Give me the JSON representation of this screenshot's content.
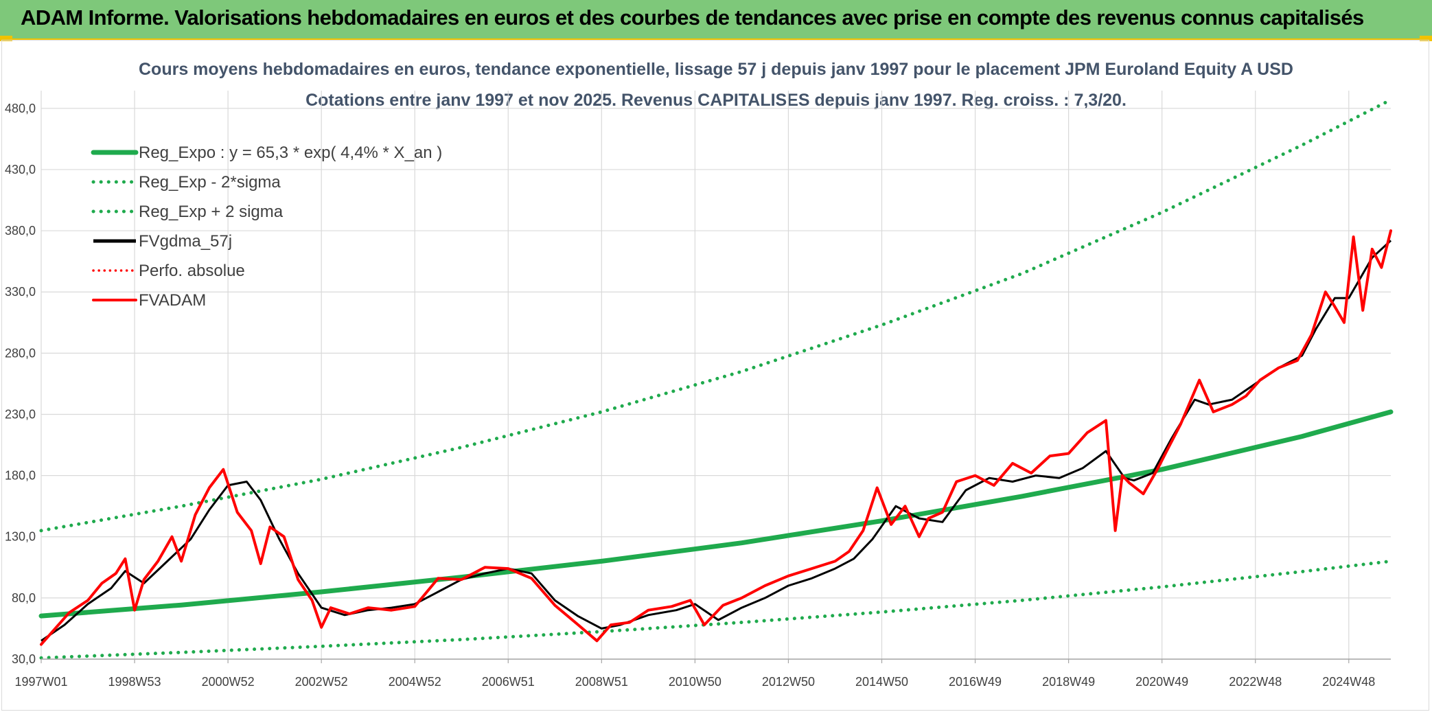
{
  "header": {
    "title": "ADAM Informe. Valorisations hebdomadaires en euros et des courbes de tendances avec prise en compte des revenus connus capitalisés"
  },
  "colors": {
    "banner": "#7ec87a",
    "accent": "#f2c200",
    "trend": "#1faa4d",
    "smooth": "#000000",
    "price": "#ff0000",
    "perfo": "#ff0000"
  },
  "chart_data": {
    "type": "line",
    "title": "Cours moyens hebdomadaires en euros, tendance exponentielle, lissage 57 j depuis janv 1997 pour le placement JPM Euroland Equity A USD",
    "subtitle": "Cotations entre janv 1997 et nov 2025. Revenus CAPITALISES depuis janv 1997. Reg. croiss. : 7,3/20.",
    "xlabel": "",
    "ylabel": "",
    "x_range": [
      1997.0,
      2025.9
    ],
    "ylim": [
      30,
      490
    ],
    "y_ticks": [
      30,
      80,
      130,
      180,
      230,
      280,
      330,
      380,
      430,
      480
    ],
    "y_tick_labels": [
      "30,0",
      "80,0",
      "130,0",
      "180,0",
      "230,0",
      "280,0",
      "330,0",
      "380,0",
      "430,0",
      "480,0"
    ],
    "x_ticks": [
      1997.0,
      1999.0,
      2001.0,
      2003.0,
      2005.0,
      2007.0,
      2009.0,
      2011.0,
      2013.0,
      2015.0,
      2017.0,
      2019.0,
      2021.0,
      2023.0,
      2025.0
    ],
    "x_tick_labels": [
      "1997W01",
      "1998W53",
      "2000W52",
      "2002W52",
      "2004W52",
      "2006W51",
      "2008W51",
      "2010W50",
      "2012W50",
      "2014W50",
      "2016W49",
      "2018W49",
      "2020W49",
      "2022W48",
      "2024W48"
    ],
    "grid": true,
    "legend_position": "top-left",
    "series": [
      {
        "name": "Reg_Expo : y = 65,3 * exp( 4,4% *  X_an )",
        "style": "thick-solid",
        "color": "#1faa4d",
        "x": [
          1997.0,
          2000.0,
          2003.0,
          2006.0,
          2009.0,
          2012.0,
          2015.0,
          2018.0,
          2021.0,
          2024.0,
          2025.9
        ],
        "values": [
          65.3,
          74.2,
          85.0,
          97.0,
          110.0,
          125.0,
          143.0,
          163.0,
          185.0,
          212.0,
          232.0
        ]
      },
      {
        "name": "Reg_Exp - 2*sigma",
        "style": "dotted",
        "color": "#1faa4d",
        "x": [
          1997.0,
          2000.0,
          2003.0,
          2006.0,
          2009.0,
          2012.0,
          2015.0,
          2018.0,
          2021.0,
          2024.0,
          2025.9
        ],
        "values": [
          31.0,
          35.5,
          40.5,
          46.0,
          52.5,
          60.0,
          68.5,
          78.0,
          89.0,
          101.5,
          110.0
        ]
      },
      {
        "name": "Reg_Exp + 2 sigma",
        "style": "dotted",
        "color": "#1faa4d",
        "x": [
          1997.0,
          2000.0,
          2003.0,
          2006.0,
          2009.0,
          2012.0,
          2015.0,
          2018.0,
          2021.0,
          2024.0,
          2025.9
        ],
        "values": [
          135.0,
          155.0,
          177.0,
          203.0,
          232.0,
          265.0,
          303.0,
          345.0,
          395.0,
          450.0,
          487.0
        ]
      },
      {
        "name": "FVgdma_57j",
        "style": "solid",
        "color": "#000000",
        "x": [
          1997.0,
          1997.5,
          1998.0,
          1998.5,
          1998.8,
          1999.2,
          1999.7,
          2000.2,
          2000.6,
          2001.0,
          2001.4,
          2001.7,
          2002.1,
          2002.5,
          2003.0,
          2003.5,
          2004.0,
          2004.5,
          2005.0,
          2005.5,
          2006.0,
          2006.5,
          2007.0,
          2007.5,
          2008.0,
          2008.5,
          2009.0,
          2009.4,
          2010.0,
          2010.6,
          2011.0,
          2011.5,
          2012.0,
          2012.5,
          2013.0,
          2013.5,
          2014.0,
          2014.4,
          2014.8,
          2015.3,
          2015.8,
          2016.3,
          2016.8,
          2017.3,
          2017.8,
          2018.3,
          2018.8,
          2019.3,
          2019.8,
          2020.2,
          2020.4,
          2020.8,
          2021.2,
          2021.7,
          2022.0,
          2022.5,
          2023.0,
          2023.5,
          2024.0,
          2024.3,
          2024.7,
          2025.0,
          2025.5,
          2025.9
        ],
        "values": [
          45,
          58,
          75,
          88,
          102,
          92,
          110,
          128,
          152,
          172,
          175,
          160,
          128,
          100,
          72,
          66,
          70,
          72,
          75,
          85,
          95,
          100,
          104,
          100,
          78,
          65,
          55,
          58,
          66,
          70,
          75,
          62,
          72,
          80,
          90,
          96,
          104,
          112,
          128,
          155,
          145,
          142,
          168,
          178,
          175,
          180,
          178,
          186,
          200,
          178,
          176,
          182,
          210,
          242,
          238,
          242,
          255,
          268,
          278,
          300,
          325,
          325,
          358,
          372
        ]
      },
      {
        "name": "Perfo. absolue",
        "style": "dotted",
        "color": "#ff0000",
        "x": [],
        "values": []
      },
      {
        "name": "FVADAM",
        "style": "thick-solid",
        "color": "#ff0000",
        "x": [
          1997.0,
          1997.3,
          1997.6,
          1998.0,
          1998.3,
          1998.6,
          1998.8,
          1999.0,
          1999.2,
          1999.5,
          1999.8,
          2000.0,
          2000.3,
          2000.6,
          2000.9,
          2001.2,
          2001.5,
          2001.7,
          2001.9,
          2002.2,
          2002.5,
          2002.8,
          2003.0,
          2003.2,
          2003.6,
          2004.0,
          2004.5,
          2005.0,
          2005.5,
          2006.0,
          2006.5,
          2007.0,
          2007.5,
          2008.0,
          2008.5,
          2008.9,
          2009.2,
          2009.6,
          2010.0,
          2010.5,
          2010.9,
          2011.2,
          2011.6,
          2012.0,
          2012.5,
          2013.0,
          2013.5,
          2014.0,
          2014.3,
          2014.6,
          2014.9,
          2015.2,
          2015.5,
          2015.8,
          2016.0,
          2016.3,
          2016.6,
          2017.0,
          2017.4,
          2017.8,
          2018.2,
          2018.6,
          2019.0,
          2019.4,
          2019.8,
          2020.0,
          2020.15,
          2020.3,
          2020.6,
          2020.9,
          2021.1,
          2021.4,
          2021.8,
          2022.1,
          2022.5,
          2022.8,
          2023.1,
          2023.5,
          2023.9,
          2024.2,
          2024.5,
          2024.7,
          2024.9,
          2025.1,
          2025.3,
          2025.5,
          2025.7,
          2025.9
        ],
        "values": [
          42,
          55,
          68,
          78,
          92,
          100,
          112,
          70,
          95,
          110,
          130,
          110,
          148,
          170,
          185,
          150,
          135,
          108,
          138,
          130,
          95,
          78,
          56,
          72,
          67,
          72,
          70,
          73,
          96,
          95,
          105,
          104,
          96,
          74,
          58,
          45,
          58,
          60,
          70,
          73,
          78,
          58,
          74,
          80,
          90,
          98,
          104,
          110,
          118,
          135,
          170,
          140,
          155,
          130,
          145,
          150,
          175,
          180,
          172,
          190,
          182,
          196,
          198,
          215,
          225,
          135,
          180,
          174,
          165,
          185,
          200,
          222,
          258,
          232,
          238,
          245,
          258,
          268,
          274,
          295,
          330,
          318,
          305,
          375,
          315,
          365,
          350,
          380
        ]
      }
    ]
  }
}
